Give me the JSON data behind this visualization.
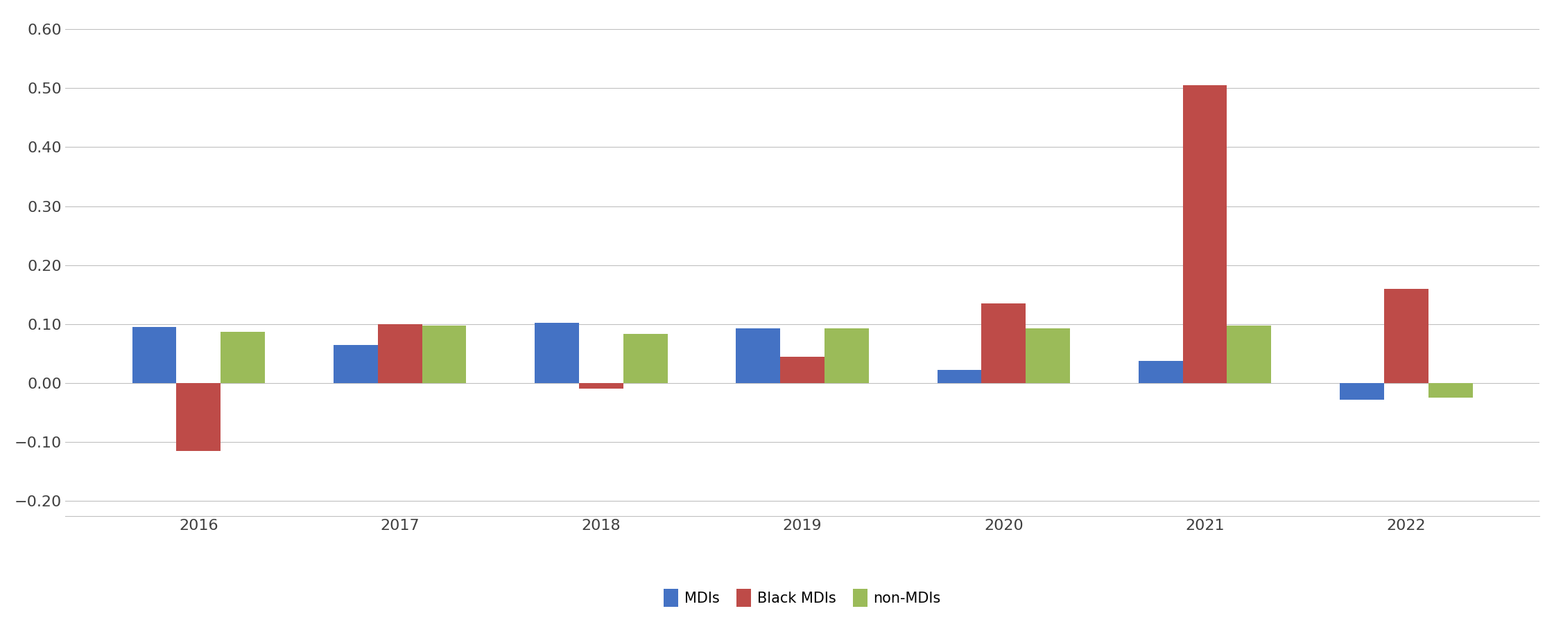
{
  "years": [
    2016,
    2017,
    2018,
    2019,
    2020,
    2021,
    2022
  ],
  "MDIs": [
    0.095,
    0.065,
    0.102,
    0.093,
    0.022,
    0.038,
    -0.028
  ],
  "Black_MDIs": [
    -0.115,
    0.1,
    -0.01,
    0.045,
    0.135,
    0.505,
    0.16
  ],
  "non_MDIs": [
    0.087,
    0.097,
    0.083,
    0.093,
    0.093,
    0.098,
    -0.025
  ],
  "colors": {
    "MDIs": "#4472C4",
    "Black_MDIs": "#BE4B48",
    "non_MDIs": "#9BBB59"
  },
  "legend_labels": [
    "MDIs",
    "Black MDIs",
    "non-MDIs"
  ],
  "ylim": [
    -0.225,
    0.625
  ],
  "yticks": [
    -0.2,
    -0.1,
    0.0,
    0.1,
    0.2,
    0.3,
    0.4,
    0.5,
    0.6
  ],
  "background_color": "#FFFFFF",
  "plot_bg_color": "#FFFFFF",
  "bar_width": 0.22,
  "grid_color": "#C0C0C0",
  "grid_linewidth": 0.8,
  "tick_fontsize": 16,
  "legend_fontsize": 15,
  "spine_color": "#C0C0C0"
}
